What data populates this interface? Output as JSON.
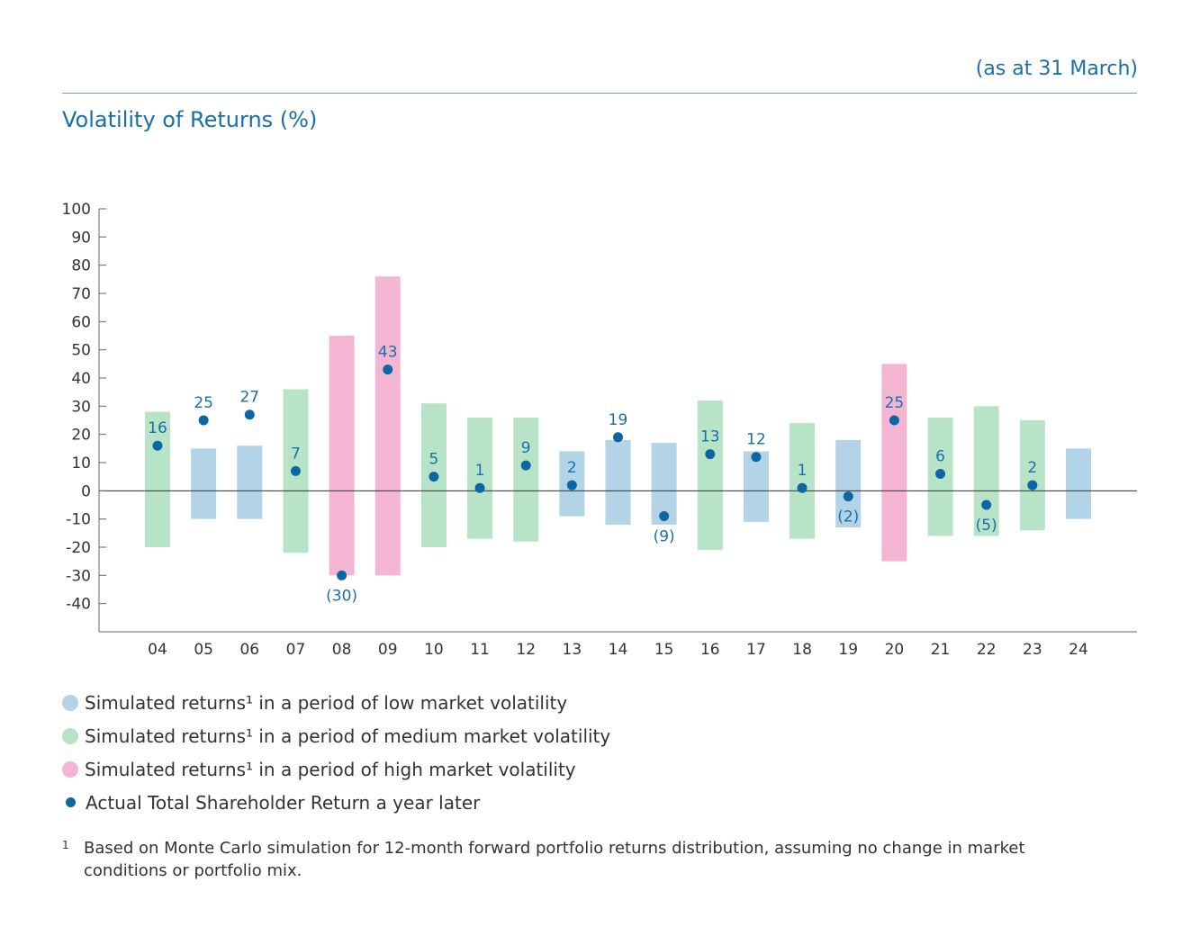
{
  "note": "(as at 31 March)",
  "chart_data": {
    "type": "bar",
    "title": "Volatility of Returns (%)",
    "xlabel": "",
    "ylabel": "",
    "ylim": [
      -50,
      100
    ],
    "yticks": [
      100,
      90,
      80,
      70,
      60,
      50,
      40,
      30,
      20,
      10,
      0,
      -10,
      -20,
      -30,
      -40
    ],
    "grid": false,
    "legend_position": "bottom",
    "colors": {
      "low": "#b3d3e6",
      "medium": "#b7e4c7",
      "high": "#f4b5d3",
      "dot": "#0d66a4",
      "label": "#1a6fa8"
    },
    "categories": [
      "04",
      "05",
      "06",
      "07",
      "08",
      "09",
      "10",
      "11",
      "12",
      "13",
      "14",
      "15",
      "16",
      "17",
      "18",
      "19",
      "20",
      "21",
      "22",
      "23",
      "24"
    ],
    "ranges": [
      {
        "low": -20,
        "high": 28,
        "volatility": "medium"
      },
      {
        "low": -10,
        "high": 15,
        "volatility": "low"
      },
      {
        "low": -10,
        "high": 16,
        "volatility": "low"
      },
      {
        "low": -22,
        "high": 36,
        "volatility": "medium"
      },
      {
        "low": -30,
        "high": 55,
        "volatility": "high"
      },
      {
        "low": -30,
        "high": 76,
        "volatility": "high"
      },
      {
        "low": -20,
        "high": 31,
        "volatility": "medium"
      },
      {
        "low": -17,
        "high": 26,
        "volatility": "medium"
      },
      {
        "low": -18,
        "high": 26,
        "volatility": "medium"
      },
      {
        "low": -9,
        "high": 14,
        "volatility": "low"
      },
      {
        "low": -12,
        "high": 18,
        "volatility": "low"
      },
      {
        "low": -12,
        "high": 17,
        "volatility": "low"
      },
      {
        "low": -21,
        "high": 32,
        "volatility": "medium"
      },
      {
        "low": -11,
        "high": 14,
        "volatility": "low"
      },
      {
        "low": -17,
        "high": 24,
        "volatility": "medium"
      },
      {
        "low": -13,
        "high": 18,
        "volatility": "low"
      },
      {
        "low": -25,
        "high": 45,
        "volatility": "high"
      },
      {
        "low": -16,
        "high": 26,
        "volatility": "medium"
      },
      {
        "low": -16,
        "high": 30,
        "volatility": "medium"
      },
      {
        "low": -14,
        "high": 25,
        "volatility": "medium"
      },
      {
        "low": -10,
        "high": 15,
        "volatility": "low"
      }
    ],
    "actual": [
      16,
      25,
      27,
      7,
      -30,
      43,
      5,
      1,
      9,
      2,
      19,
      -9,
      13,
      12,
      1,
      -2,
      25,
      6,
      -5,
      2,
      null
    ],
    "actual_labels": [
      "16",
      "25",
      "27",
      "7",
      "(30)",
      "43",
      "5",
      "1",
      "9",
      "2",
      "19",
      "(9)",
      "13",
      "12",
      "1",
      "(2)",
      "25",
      "6",
      "(5)",
      "2",
      ""
    ],
    "legend": [
      {
        "key": "low",
        "text": "Simulated returns¹ in a period of low market volatility"
      },
      {
        "key": "medium",
        "text": "Simulated returns¹ in a period of medium market volatility"
      },
      {
        "key": "high",
        "text": "Simulated returns¹ in a period of high market volatility"
      },
      {
        "key": "dot",
        "text": "Actual Total Shareholder Return a year later"
      }
    ]
  },
  "footnote": {
    "mark": "1",
    "text": "Based on Monte Carlo simulation for 12-month forward portfolio returns distribution, assuming no change in market conditions or portfolio mix."
  }
}
